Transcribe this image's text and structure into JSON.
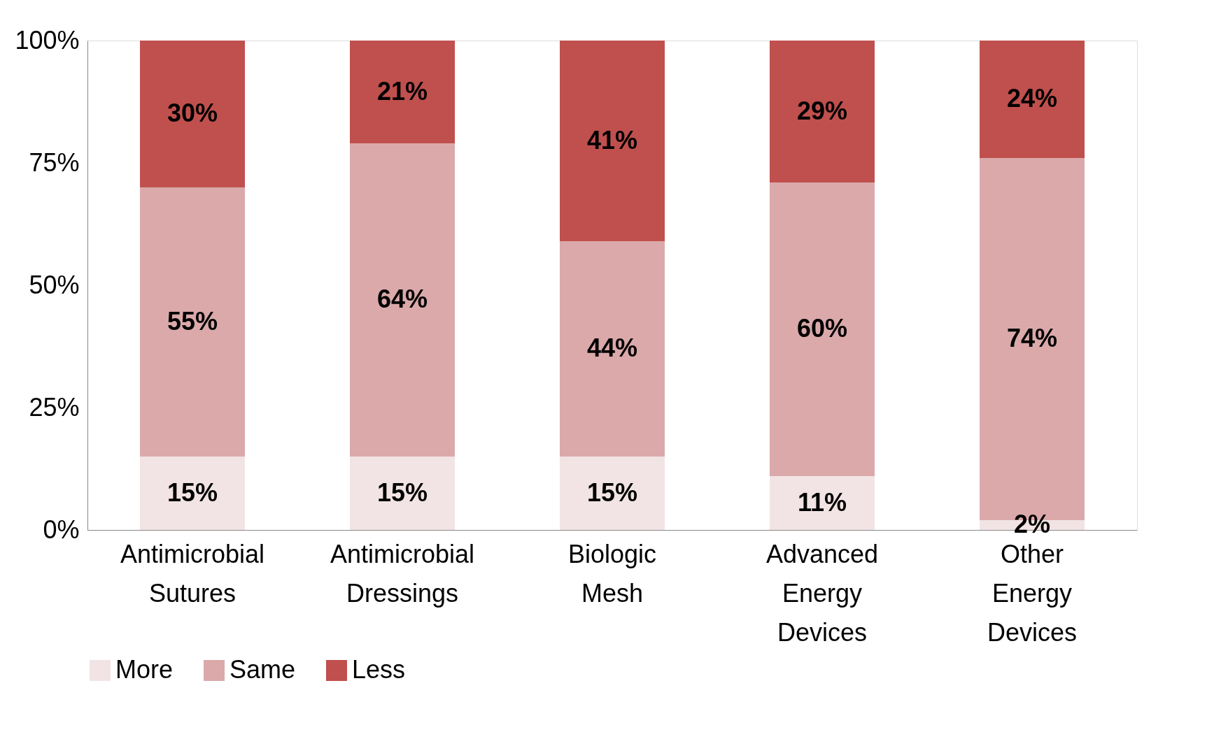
{
  "chart_data": {
    "type": "bar",
    "stacked": true,
    "categories": [
      "Antimicrobial Sutures",
      "Antimicrobial Dressings",
      "Biologic Mesh",
      "Advanced Energy Devices",
      "Other Energy Devices"
    ],
    "series": [
      {
        "name": "More",
        "color": "#f2e4e4",
        "values": [
          15,
          15,
          15,
          11,
          2
        ],
        "value_labels": [
          "15%",
          "15%",
          "15%",
          "11%",
          "2%"
        ]
      },
      {
        "name": "Same",
        "color": "#dba9aa",
        "values": [
          55,
          64,
          44,
          60,
          74
        ],
        "value_labels": [
          "55%",
          "64%",
          "44%",
          "60%",
          "74%"
        ]
      },
      {
        "name": "Less",
        "color": "#c0504d",
        "values": [
          30,
          21,
          41,
          29,
          24
        ],
        "value_labels": [
          "30%",
          "21%",
          "41%",
          "29%",
          "24%"
        ]
      }
    ],
    "ylim": [
      0,
      100
    ],
    "yticks": [
      {
        "value": 0,
        "label": "0%"
      },
      {
        "value": 25,
        "label": "25%"
      },
      {
        "value": 50,
        "label": "50%"
      },
      {
        "value": 75,
        "label": "75%"
      },
      {
        "value": 100,
        "label": "100%"
      }
    ],
    "grid": false,
    "legend": "bottom"
  }
}
